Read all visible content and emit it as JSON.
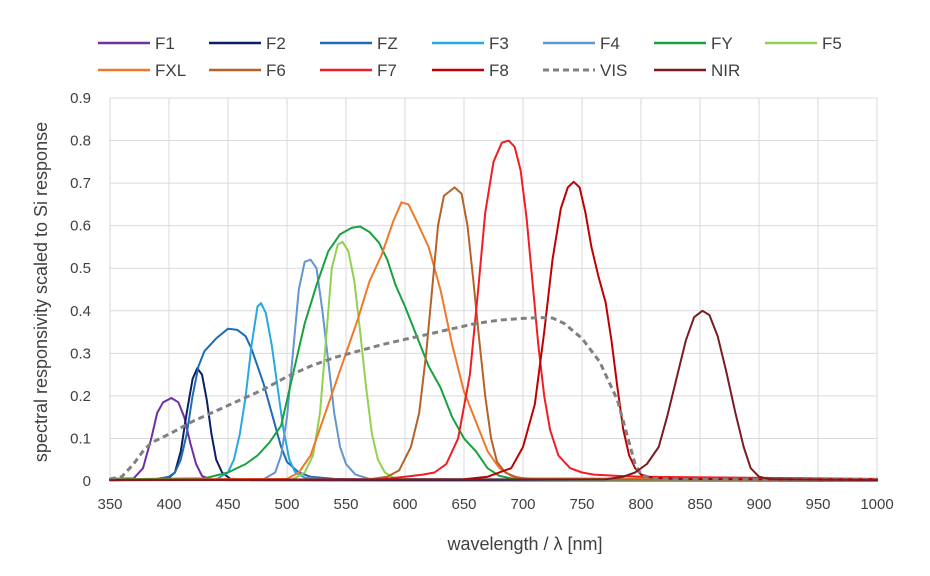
{
  "chart_data": {
    "type": "line",
    "xlabel": "wavelength / λ [nm]",
    "ylabel": "spectral responsivity scaled to Si response",
    "xlim": [
      350,
      1000
    ],
    "ylim": [
      0,
      0.9
    ],
    "x_ticks": [
      "350",
      "400",
      "450",
      "500",
      "550",
      "600",
      "650",
      "700",
      "750",
      "800",
      "850",
      "900",
      "950",
      "1000"
    ],
    "y_ticks": [
      "0",
      "0.1",
      "0.2",
      "0.3",
      "0.4",
      "0.5",
      "0.6",
      "0.7",
      "0.8",
      "0.9"
    ],
    "grid": true,
    "legend_position": "top",
    "series": [
      {
        "name": "F1",
        "color": "#7030A0",
        "dashed": false,
        "points": [
          [
            350,
            0.005
          ],
          [
            370,
            0.006
          ],
          [
            378,
            0.03
          ],
          [
            385,
            0.1
          ],
          [
            390,
            0.16
          ],
          [
            395,
            0.185
          ],
          [
            402,
            0.195
          ],
          [
            408,
            0.185
          ],
          [
            413,
            0.15
          ],
          [
            418,
            0.09
          ],
          [
            423,
            0.04
          ],
          [
            428,
            0.012
          ],
          [
            435,
            0.004
          ],
          [
            450,
            0.002
          ],
          [
            1000,
            0.001
          ]
        ]
      },
      {
        "name": "F2",
        "color": "#0B1F63",
        "dashed": false,
        "points": [
          [
            350,
            0.002
          ],
          [
            398,
            0.003
          ],
          [
            405,
            0.02
          ],
          [
            410,
            0.07
          ],
          [
            415,
            0.16
          ],
          [
            420,
            0.24
          ],
          [
            424,
            0.265
          ],
          [
            428,
            0.25
          ],
          [
            432,
            0.19
          ],
          [
            436,
            0.11
          ],
          [
            440,
            0.05
          ],
          [
            445,
            0.02
          ],
          [
            452,
            0.005
          ],
          [
            470,
            0.002
          ],
          [
            1000,
            0.001
          ]
        ]
      },
      {
        "name": "FZ",
        "color": "#1F6BB5",
        "dashed": false,
        "points": [
          [
            350,
            0.004
          ],
          [
            390,
            0.005
          ],
          [
            400,
            0.01
          ],
          [
            405,
            0.02
          ],
          [
            410,
            0.05
          ],
          [
            415,
            0.11
          ],
          [
            420,
            0.2
          ],
          [
            425,
            0.27
          ],
          [
            430,
            0.305
          ],
          [
            440,
            0.335
          ],
          [
            450,
            0.358
          ],
          [
            458,
            0.355
          ],
          [
            465,
            0.34
          ],
          [
            470,
            0.31
          ],
          [
            475,
            0.27
          ],
          [
            480,
            0.23
          ],
          [
            485,
            0.18
          ],
          [
            490,
            0.13
          ],
          [
            495,
            0.08
          ],
          [
            500,
            0.045
          ],
          [
            510,
            0.02
          ],
          [
            520,
            0.01
          ],
          [
            540,
            0.005
          ],
          [
            560,
            0.004
          ],
          [
            1000,
            0.002
          ]
        ]
      },
      {
        "name": "F3",
        "color": "#26A9E0",
        "dashed": false,
        "points": [
          [
            350,
            0.003
          ],
          [
            440,
            0.004
          ],
          [
            450,
            0.02
          ],
          [
            455,
            0.05
          ],
          [
            460,
            0.11
          ],
          [
            465,
            0.2
          ],
          [
            470,
            0.32
          ],
          [
            475,
            0.41
          ],
          [
            478,
            0.418
          ],
          [
            482,
            0.395
          ],
          [
            487,
            0.32
          ],
          [
            492,
            0.22
          ],
          [
            497,
            0.12
          ],
          [
            502,
            0.05
          ],
          [
            507,
            0.02
          ],
          [
            515,
            0.008
          ],
          [
            530,
            0.004
          ],
          [
            1000,
            0.002
          ]
        ]
      },
      {
        "name": "F4",
        "color": "#6196D3",
        "dashed": false,
        "points": [
          [
            350,
            0.003
          ],
          [
            480,
            0.004
          ],
          [
            490,
            0.02
          ],
          [
            495,
            0.06
          ],
          [
            500,
            0.15
          ],
          [
            505,
            0.3
          ],
          [
            510,
            0.45
          ],
          [
            515,
            0.515
          ],
          [
            520,
            0.52
          ],
          [
            525,
            0.5
          ],
          [
            530,
            0.4
          ],
          [
            535,
            0.28
          ],
          [
            540,
            0.16
          ],
          [
            545,
            0.08
          ],
          [
            550,
            0.04
          ],
          [
            558,
            0.015
          ],
          [
            570,
            0.005
          ],
          [
            1000,
            0.002
          ]
        ]
      },
      {
        "name": "FY",
        "color": "#18A23E",
        "dashed": false,
        "points": [
          [
            350,
            0.004
          ],
          [
            430,
            0.006
          ],
          [
            450,
            0.02
          ],
          [
            465,
            0.04
          ],
          [
            475,
            0.06
          ],
          [
            485,
            0.09
          ],
          [
            495,
            0.13
          ],
          [
            505,
            0.25
          ],
          [
            515,
            0.37
          ],
          [
            525,
            0.46
          ],
          [
            535,
            0.54
          ],
          [
            545,
            0.58
          ],
          [
            555,
            0.595
          ],
          [
            562,
            0.598
          ],
          [
            570,
            0.585
          ],
          [
            578,
            0.56
          ],
          [
            585,
            0.52
          ],
          [
            592,
            0.46
          ],
          [
            600,
            0.41
          ],
          [
            610,
            0.34
          ],
          [
            620,
            0.27
          ],
          [
            630,
            0.22
          ],
          [
            640,
            0.15
          ],
          [
            650,
            0.1
          ],
          [
            660,
            0.07
          ],
          [
            670,
            0.03
          ],
          [
            680,
            0.012
          ],
          [
            690,
            0.006
          ],
          [
            1000,
            0.003
          ]
        ]
      },
      {
        "name": "F5",
        "color": "#92D050",
        "dashed": false,
        "points": [
          [
            350,
            0.003
          ],
          [
            505,
            0.004
          ],
          [
            515,
            0.02
          ],
          [
            522,
            0.06
          ],
          [
            528,
            0.16
          ],
          [
            533,
            0.33
          ],
          [
            538,
            0.5
          ],
          [
            543,
            0.555
          ],
          [
            547,
            0.562
          ],
          [
            552,
            0.54
          ],
          [
            557,
            0.47
          ],
          [
            562,
            0.35
          ],
          [
            567,
            0.22
          ],
          [
            572,
            0.11
          ],
          [
            577,
            0.05
          ],
          [
            583,
            0.02
          ],
          [
            590,
            0.008
          ],
          [
            600,
            0.004
          ],
          [
            1000,
            0.002
          ]
        ]
      },
      {
        "name": "FXL",
        "color": "#F07828",
        "dashed": false,
        "points": [
          [
            350,
            0.003
          ],
          [
            500,
            0.005
          ],
          [
            510,
            0.02
          ],
          [
            520,
            0.06
          ],
          [
            530,
            0.14
          ],
          [
            540,
            0.22
          ],
          [
            550,
            0.3
          ],
          [
            560,
            0.38
          ],
          [
            570,
            0.47
          ],
          [
            580,
            0.53
          ],
          [
            590,
            0.61
          ],
          [
            597,
            0.655
          ],
          [
            603,
            0.65
          ],
          [
            610,
            0.61
          ],
          [
            620,
            0.55
          ],
          [
            630,
            0.45
          ],
          [
            640,
            0.32
          ],
          [
            650,
            0.21
          ],
          [
            660,
            0.14
          ],
          [
            670,
            0.07
          ],
          [
            680,
            0.03
          ],
          [
            690,
            0.012
          ],
          [
            700,
            0.006
          ],
          [
            1000,
            0.003
          ]
        ]
      },
      {
        "name": "F6",
        "color": "#B5622A",
        "dashed": false,
        "points": [
          [
            350,
            0.003
          ],
          [
            570,
            0.004
          ],
          [
            585,
            0.01
          ],
          [
            595,
            0.025
          ],
          [
            605,
            0.08
          ],
          [
            612,
            0.16
          ],
          [
            618,
            0.3
          ],
          [
            623,
            0.45
          ],
          [
            628,
            0.6
          ],
          [
            633,
            0.67
          ],
          [
            642,
            0.69
          ],
          [
            648,
            0.675
          ],
          [
            653,
            0.6
          ],
          [
            658,
            0.47
          ],
          [
            663,
            0.33
          ],
          [
            668,
            0.2
          ],
          [
            673,
            0.1
          ],
          [
            678,
            0.045
          ],
          [
            685,
            0.02
          ],
          [
            695,
            0.008
          ],
          [
            710,
            0.004
          ],
          [
            1000,
            0.002
          ]
        ]
      },
      {
        "name": "F7",
        "color": "#F01E23",
        "dashed": false,
        "points": [
          [
            350,
            0.002
          ],
          [
            580,
            0.004
          ],
          [
            600,
            0.01
          ],
          [
            615,
            0.015
          ],
          [
            625,
            0.02
          ],
          [
            635,
            0.04
          ],
          [
            645,
            0.1
          ],
          [
            655,
            0.25
          ],
          [
            662,
            0.45
          ],
          [
            668,
            0.63
          ],
          [
            675,
            0.75
          ],
          [
            682,
            0.795
          ],
          [
            688,
            0.8
          ],
          [
            693,
            0.785
          ],
          [
            698,
            0.73
          ],
          [
            703,
            0.62
          ],
          [
            708,
            0.47
          ],
          [
            713,
            0.32
          ],
          [
            718,
            0.2
          ],
          [
            723,
            0.12
          ],
          [
            730,
            0.06
          ],
          [
            740,
            0.03
          ],
          [
            750,
            0.02
          ],
          [
            760,
            0.015
          ],
          [
            780,
            0.012
          ],
          [
            800,
            0.01
          ],
          [
            1000,
            0.005
          ]
        ]
      },
      {
        "name": "F8",
        "color": "#C00000",
        "dashed": false,
        "points": [
          [
            350,
            0.002
          ],
          [
            650,
            0.004
          ],
          [
            670,
            0.01
          ],
          [
            690,
            0.03
          ],
          [
            700,
            0.08
          ],
          [
            710,
            0.18
          ],
          [
            718,
            0.35
          ],
          [
            725,
            0.52
          ],
          [
            732,
            0.64
          ],
          [
            738,
            0.69
          ],
          [
            743,
            0.703
          ],
          [
            748,
            0.69
          ],
          [
            753,
            0.63
          ],
          [
            758,
            0.55
          ],
          [
            764,
            0.48
          ],
          [
            770,
            0.42
          ],
          [
            775,
            0.33
          ],
          [
            780,
            0.22
          ],
          [
            785,
            0.12
          ],
          [
            790,
            0.06
          ],
          [
            795,
            0.03
          ],
          [
            800,
            0.015
          ],
          [
            810,
            0.008
          ],
          [
            830,
            0.005
          ],
          [
            1000,
            0.003
          ]
        ]
      },
      {
        "name": "VIS",
        "color": "#808080",
        "dashed": true,
        "points": [
          [
            350,
            0.005
          ],
          [
            360,
            0.01
          ],
          [
            370,
            0.04
          ],
          [
            378,
            0.07
          ],
          [
            385,
            0.09
          ],
          [
            400,
            0.11
          ],
          [
            420,
            0.14
          ],
          [
            440,
            0.165
          ],
          [
            460,
            0.19
          ],
          [
            480,
            0.215
          ],
          [
            500,
            0.245
          ],
          [
            520,
            0.27
          ],
          [
            540,
            0.29
          ],
          [
            560,
            0.305
          ],
          [
            580,
            0.32
          ],
          [
            600,
            0.333
          ],
          [
            620,
            0.345
          ],
          [
            640,
            0.358
          ],
          [
            660,
            0.37
          ],
          [
            680,
            0.378
          ],
          [
            700,
            0.382
          ],
          [
            715,
            0.384
          ],
          [
            725,
            0.383
          ],
          [
            735,
            0.37
          ],
          [
            750,
            0.335
          ],
          [
            765,
            0.28
          ],
          [
            780,
            0.19
          ],
          [
            790,
            0.09
          ],
          [
            795,
            0.04
          ],
          [
            800,
            0.015
          ],
          [
            810,
            0.006
          ],
          [
            830,
            0.004
          ],
          [
            1000,
            0.003
          ]
        ]
      },
      {
        "name": "NIR",
        "color": "#7B1C22",
        "dashed": false,
        "points": [
          [
            350,
            0.002
          ],
          [
            770,
            0.004
          ],
          [
            785,
            0.01
          ],
          [
            795,
            0.02
          ],
          [
            805,
            0.04
          ],
          [
            815,
            0.08
          ],
          [
            822,
            0.15
          ],
          [
            830,
            0.24
          ],
          [
            838,
            0.33
          ],
          [
            845,
            0.385
          ],
          [
            852,
            0.4
          ],
          [
            858,
            0.39
          ],
          [
            865,
            0.34
          ],
          [
            872,
            0.26
          ],
          [
            880,
            0.16
          ],
          [
            887,
            0.08
          ],
          [
            893,
            0.03
          ],
          [
            900,
            0.01
          ],
          [
            910,
            0.004
          ],
          [
            1000,
            0.002
          ]
        ]
      }
    ]
  }
}
